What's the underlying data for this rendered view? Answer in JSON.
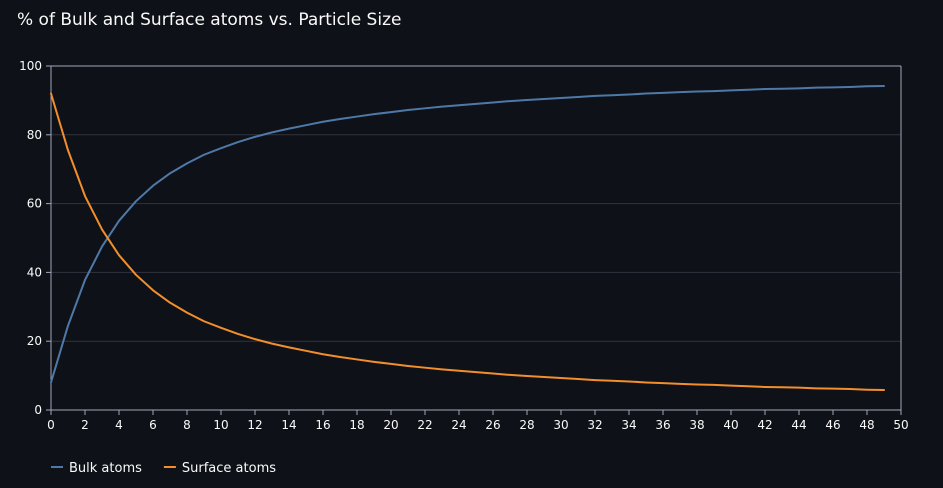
{
  "chart_data": {
    "type": "line",
    "title": "% of Bulk and Surface atoms vs. Particle Size",
    "xlabel": "",
    "ylabel": "",
    "xlim": [
      0,
      50
    ],
    "ylim": [
      0,
      100
    ],
    "x_ticks": [
      0,
      2,
      4,
      6,
      8,
      10,
      12,
      14,
      16,
      18,
      20,
      22,
      24,
      26,
      28,
      30,
      32,
      34,
      36,
      38,
      40,
      42,
      44,
      46,
      48,
      50
    ],
    "y_ticks": [
      0,
      20,
      40,
      60,
      80,
      100
    ],
    "grid": true,
    "legend_position": "bottom-left",
    "x": [
      0,
      1,
      2,
      3,
      4,
      5,
      6,
      7,
      8,
      9,
      10,
      11,
      12,
      13,
      14,
      15,
      16,
      17,
      18,
      19,
      20,
      21,
      22,
      23,
      24,
      25,
      26,
      27,
      28,
      29,
      30,
      31,
      32,
      33,
      34,
      35,
      36,
      37,
      38,
      39,
      40,
      41,
      42,
      43,
      44,
      45,
      46,
      47,
      48,
      49
    ],
    "series": [
      {
        "name": "Bulk atoms",
        "color": "#4e79a7",
        "values": [
          8.0,
          24.5,
          37.8,
          47.5,
          55.0,
          60.7,
          65.2,
          68.8,
          71.7,
          74.2,
          76.1,
          77.9,
          79.4,
          80.7,
          81.8,
          82.8,
          83.8,
          84.6,
          85.3,
          86.0,
          86.6,
          87.2,
          87.7,
          88.2,
          88.6,
          89.0,
          89.4,
          89.8,
          90.1,
          90.4,
          90.7,
          91.0,
          91.3,
          91.5,
          91.7,
          92.0,
          92.2,
          92.4,
          92.6,
          92.7,
          92.9,
          93.1,
          93.3,
          93.4,
          93.5,
          93.7,
          93.8,
          93.9,
          94.1,
          94.2
        ]
      },
      {
        "name": "Surface atoms",
        "color": "#f28e2b",
        "values": [
          92.0,
          75.5,
          62.2,
          52.5,
          45.0,
          39.3,
          34.8,
          31.2,
          28.3,
          25.8,
          23.9,
          22.1,
          20.6,
          19.3,
          18.2,
          17.2,
          16.2,
          15.4,
          14.7,
          14.0,
          13.4,
          12.8,
          12.3,
          11.8,
          11.4,
          11.0,
          10.6,
          10.2,
          9.9,
          9.6,
          9.3,
          9.0,
          8.7,
          8.5,
          8.3,
          8.0,
          7.8,
          7.6,
          7.4,
          7.3,
          7.1,
          6.9,
          6.7,
          6.6,
          6.5,
          6.3,
          6.2,
          6.1,
          5.9,
          5.8
        ]
      }
    ]
  }
}
